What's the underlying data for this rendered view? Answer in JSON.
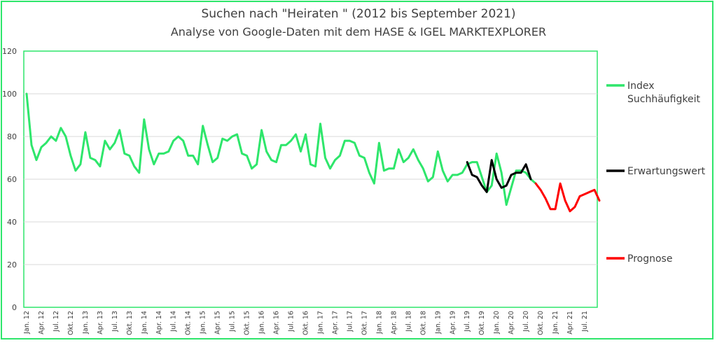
{
  "title": "Suchen nach \"Heiraten \" (2012 bis September 2021)",
  "subtitle": "Analyse von Google-Daten mit dem HASE & IGEL MARKTEXPLORER",
  "chart_data": {
    "type": "line",
    "title": "Suchen nach \"Heiraten \" (2012 bis September 2021)",
    "subtitle": "Analyse von Google-Daten mit dem HASE & IGEL MARKTEXPLORER",
    "ylim": [
      0,
      120
    ],
    "yticks": [
      0,
      20,
      40,
      60,
      80,
      100,
      120
    ],
    "grid": true,
    "legend_position": "right",
    "x_labels": [
      {
        "index": 0,
        "label": "Jan. 12"
      },
      {
        "index": 3,
        "label": "Apr. 12"
      },
      {
        "index": 6,
        "label": "Jul. 12"
      },
      {
        "index": 9,
        "label": "Okt. 12"
      },
      {
        "index": 12,
        "label": "Jan. 13"
      },
      {
        "index": 15,
        "label": "Apr. 13"
      },
      {
        "index": 18,
        "label": "Jul. 13"
      },
      {
        "index": 21,
        "label": "Okt. 13"
      },
      {
        "index": 24,
        "label": "Jan. 14"
      },
      {
        "index": 27,
        "label": "Apr. 14"
      },
      {
        "index": 30,
        "label": "Jul. 14"
      },
      {
        "index": 33,
        "label": "Okt. 14"
      },
      {
        "index": 36,
        "label": "Jan. 15"
      },
      {
        "index": 39,
        "label": "Apr. 15"
      },
      {
        "index": 42,
        "label": "Jul. 15"
      },
      {
        "index": 45,
        "label": "Okt. 15"
      },
      {
        "index": 48,
        "label": "Jan. 16"
      },
      {
        "index": 51,
        "label": "Apr. 16"
      },
      {
        "index": 54,
        "label": "Jul. 16"
      },
      {
        "index": 57,
        "label": "Okt. 16"
      },
      {
        "index": 60,
        "label": "Jan. 17"
      },
      {
        "index": 63,
        "label": "Apr. 17"
      },
      {
        "index": 66,
        "label": "Jul. 17"
      },
      {
        "index": 69,
        "label": "Okt. 17"
      },
      {
        "index": 72,
        "label": "Jan. 18"
      },
      {
        "index": 75,
        "label": "Apr. 18"
      },
      {
        "index": 78,
        "label": "Jul. 18"
      },
      {
        "index": 81,
        "label": "Okt. 18"
      },
      {
        "index": 84,
        "label": "Jan. 19"
      },
      {
        "index": 87,
        "label": "Apr. 19"
      },
      {
        "index": 90,
        "label": "Jul. 19"
      },
      {
        "index": 93,
        "label": "Okt. 19"
      },
      {
        "index": 96,
        "label": "Jan. 20"
      },
      {
        "index": 99,
        "label": "Apr. 20"
      },
      {
        "index": 102,
        "label": "Jul. 20"
      },
      {
        "index": 105,
        "label": "Okt. 20"
      },
      {
        "index": 108,
        "label": "Jan. 21"
      },
      {
        "index": 111,
        "label": "Apr. 21"
      },
      {
        "index": 114,
        "label": "Jul. 21"
      }
    ],
    "series": [
      {
        "name": "Index Suchhäufigkeit",
        "color": "#2ee66b",
        "start_label": "Jan. 12",
        "values": [
          100,
          76,
          69,
          75,
          77,
          80,
          78,
          84,
          80,
          71,
          64,
          67,
          82,
          70,
          69,
          66,
          78,
          74,
          77,
          83,
          72,
          71,
          66,
          63,
          88,
          74,
          67,
          72,
          72,
          73,
          78,
          80,
          78,
          71,
          71,
          67,
          85,
          76,
          68,
          70,
          79,
          78,
          80,
          81,
          72,
          71,
          65,
          67,
          83,
          73,
          69,
          68,
          76,
          76,
          78,
          81,
          73,
          81,
          67,
          66,
          86,
          70,
          65,
          69,
          71,
          78,
          78,
          77,
          71,
          70,
          63,
          58,
          77,
          64,
          65,
          65,
          74,
          68,
          70,
          74,
          69,
          65,
          59,
          61,
          73,
          64,
          59,
          62,
          62,
          63,
          67,
          68,
          68,
          61,
          54,
          57,
          72,
          63,
          48,
          56,
          64,
          64,
          63,
          60,
          58
        ]
      },
      {
        "name": "Erwartungswert",
        "color": "#000000",
        "start_label": "Jul. 19",
        "values": [
          68,
          62,
          61,
          57,
          54,
          69,
          60,
          56,
          57,
          62,
          63,
          63,
          67,
          60
        ]
      },
      {
        "name": "Prognose",
        "color": "#ff0000",
        "start_label": "Sep. 20",
        "values": [
          58,
          55,
          51,
          46,
          46,
          58,
          50,
          45,
          47,
          52,
          53,
          54,
          55,
          50
        ]
      }
    ]
  }
}
